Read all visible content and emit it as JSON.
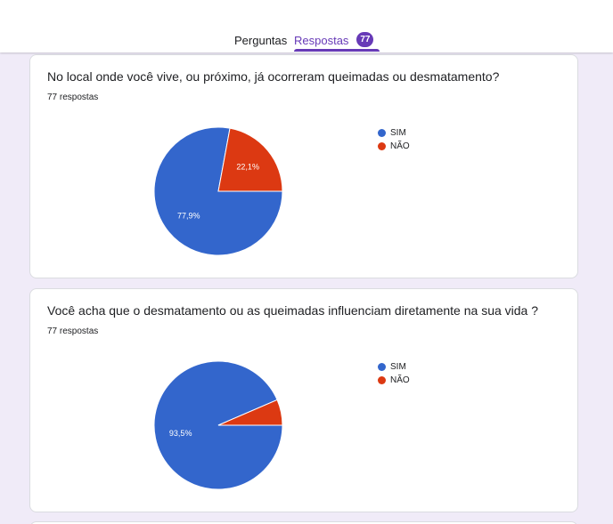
{
  "header": {
    "tabs": [
      {
        "label": "Perguntas"
      },
      {
        "label": "Respostas",
        "badge": "77"
      }
    ]
  },
  "colors": {
    "sim": "#3366cc",
    "nao": "#dc3912",
    "accent": "#673ab7"
  },
  "cards": [
    {
      "title": "No local onde você vive, ou próximo, já ocorreram queimadas ou desmatamento?",
      "count": "77 respostas",
      "legend": [
        "SIM",
        "NÃO"
      ]
    },
    {
      "title": "Você acha que o desmatamento ou as queimadas influenciam diretamente na sua vida ?",
      "count": "77 respostas",
      "legend": [
        "SIM",
        "NÃO"
      ]
    }
  ],
  "chart_data": [
    {
      "type": "pie",
      "categories": [
        "SIM",
        "NÃO"
      ],
      "values": [
        77.9,
        22.1
      ],
      "labels": [
        "77,9%",
        "22,1%"
      ]
    },
    {
      "type": "pie",
      "categories": [
        "SIM",
        "NÃO"
      ],
      "values": [
        93.5,
        6.5
      ],
      "labels": [
        "93,5%",
        ""
      ]
    }
  ]
}
